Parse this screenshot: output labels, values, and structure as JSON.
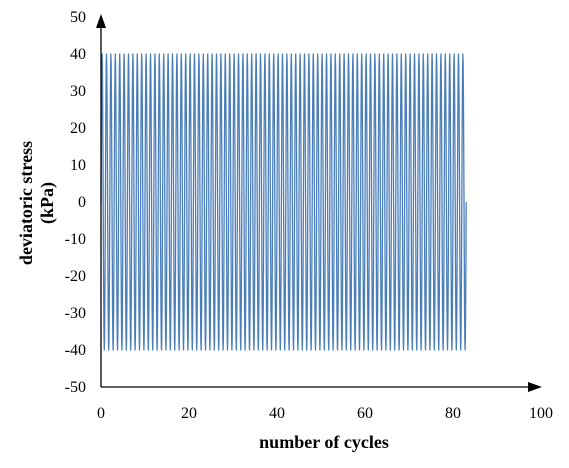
{
  "chart_data": {
    "type": "line",
    "title": "",
    "xlabel": "number of cycles",
    "ylabel_lines": [
      "deviatoric stress",
      "(kPa)"
    ],
    "xlim": [
      0,
      100
    ],
    "ylim": [
      -50,
      50
    ],
    "x_ticks": [
      "0",
      "20",
      "40",
      "60",
      "80",
      "100"
    ],
    "y_ticks": [
      "50",
      "40",
      "30",
      "20",
      "10",
      "0",
      "-10",
      "-20",
      "-30",
      "-40",
      "-50"
    ],
    "grid": false,
    "legend": "none",
    "series": [
      {
        "signal": "sinusoidal cyclic loading",
        "amplitude": 40,
        "mean": 0,
        "cycles_start": 0,
        "cycles_end": 83,
        "num_cycles": 83,
        "color": "#4a7ebb"
      }
    ]
  }
}
